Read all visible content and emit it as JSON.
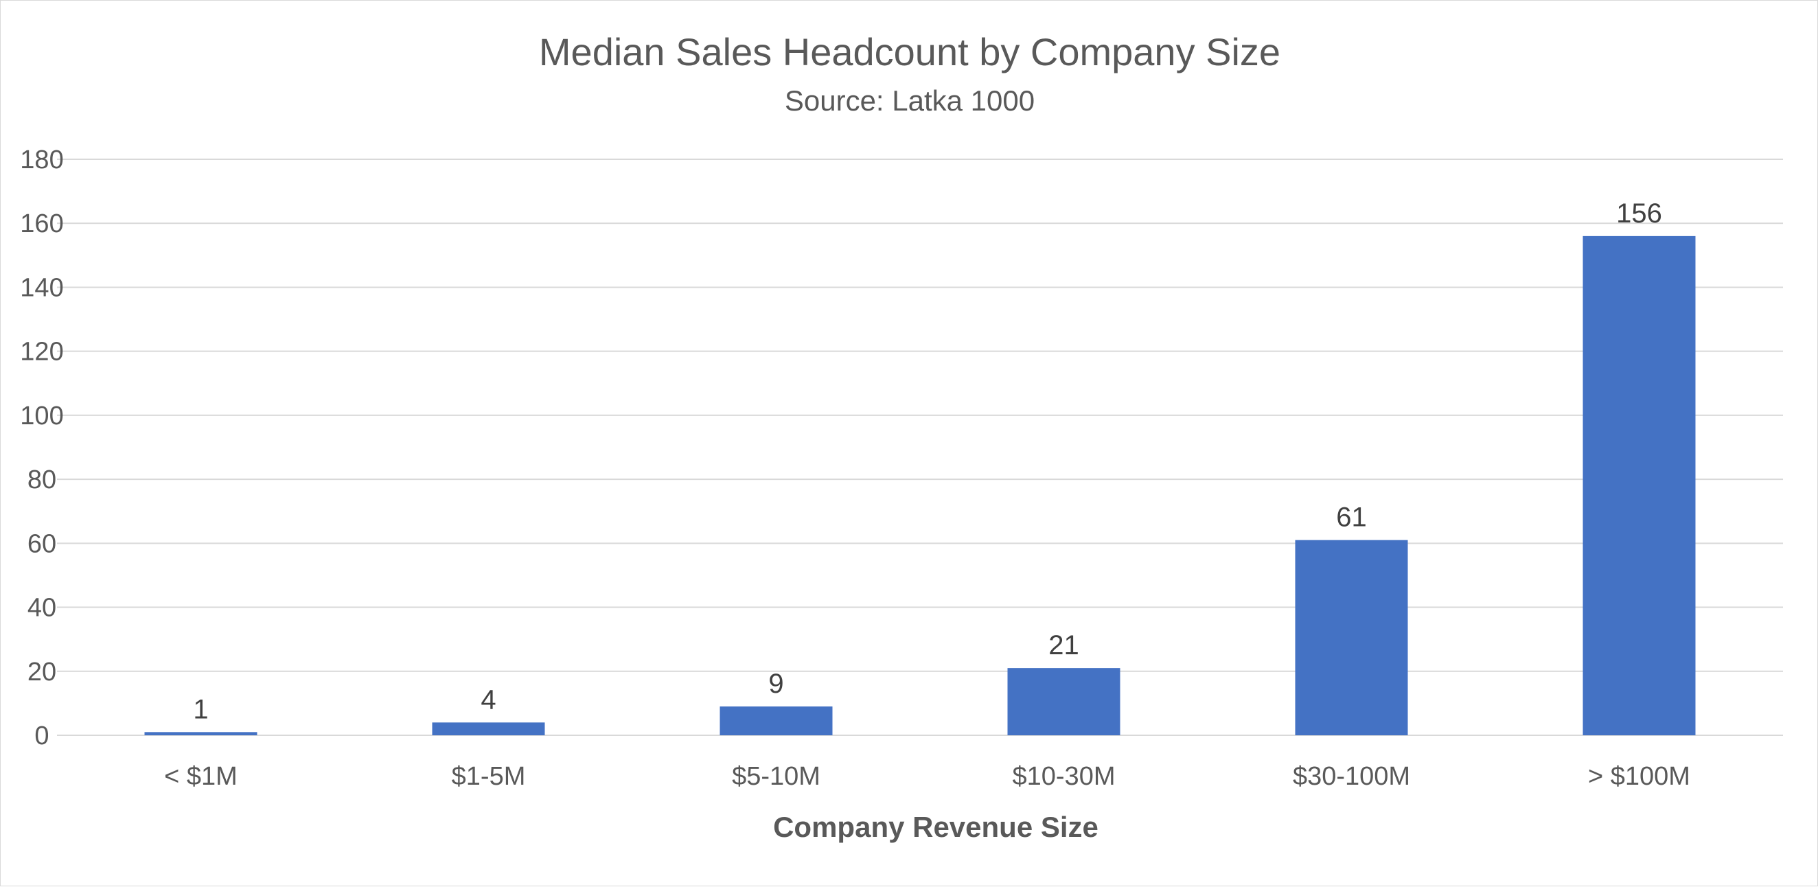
{
  "chart_data": {
    "type": "bar",
    "title": "Median Sales Headcount by Company Size",
    "subtitle": "Source:  Latka 1000",
    "xlabel": "Company Revenue Size",
    "ylabel": "",
    "categories": [
      "< $1M",
      "$1-5M",
      "$5-10M",
      "$10-30M",
      "$30-100M",
      "> $100M"
    ],
    "values": [
      1,
      4,
      9,
      21,
      61,
      156
    ],
    "data_labels": [
      "1",
      "4",
      "9",
      "21",
      "61",
      "156"
    ],
    "ylim": [
      0,
      180
    ],
    "yticks": [
      0,
      20,
      40,
      60,
      80,
      100,
      120,
      140,
      160,
      180
    ],
    "grid": true,
    "legend": "none",
    "colors": {
      "bar": "#4472c4",
      "grid": "#d9d9d9",
      "text": "#595959"
    }
  }
}
